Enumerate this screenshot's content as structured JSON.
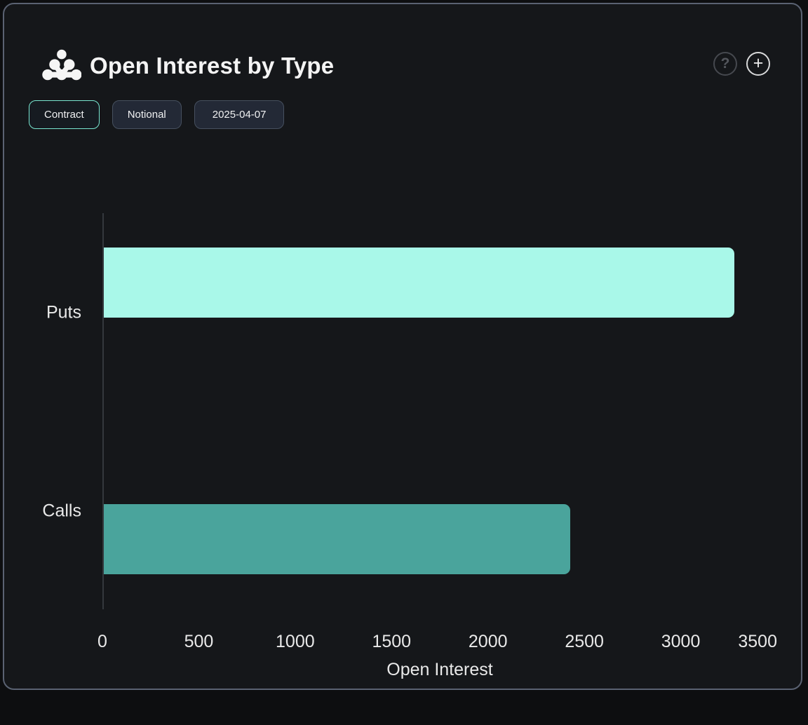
{
  "header": {
    "title": "Open Interest by Type",
    "help_glyph": "?",
    "add_glyph": "+"
  },
  "toolbar": {
    "buttons": [
      {
        "label": "Contract",
        "active": true
      },
      {
        "label": "Notional",
        "active": false
      },
      {
        "label": "2025-04-07",
        "active": false
      }
    ]
  },
  "chart_data": {
    "type": "bar",
    "orientation": "horizontal",
    "title": "Open Interest by Type",
    "categories": [
      "Puts",
      "Calls"
    ],
    "values": [
      3270,
      2420
    ],
    "bar_colors": [
      "#a9f8e9",
      "#4aa49c"
    ],
    "xlabel": "Open Interest",
    "ylabel": "",
    "xlim": [
      0,
      3500
    ],
    "xticks": [
      0,
      500,
      1000,
      1500,
      2000,
      2500,
      3000,
      3500
    ],
    "grid": false,
    "legend": false
  },
  "colors": {
    "card_background": "#15171a",
    "card_border": "#5a6272",
    "accent": "#79e7d1",
    "axis_line": "#34383d",
    "text": "#e9e9e9"
  }
}
